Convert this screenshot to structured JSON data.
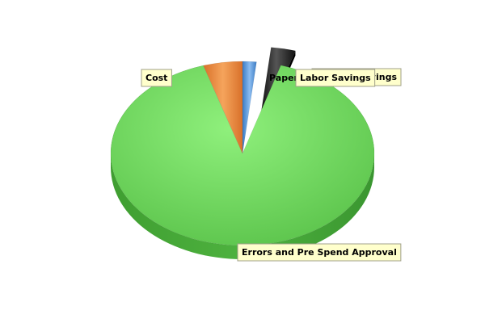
{
  "chart_data": {
    "type": "pie",
    "style": "3d-exploded",
    "legend": "none",
    "slices": [
      {
        "name": "Paper Cost Savings",
        "value": 1.7,
        "color": "#4f8fd6"
      },
      {
        "name": "Labor Savings",
        "value": 3.0,
        "color": "#1a1a1a"
      },
      {
        "name": "Errors and Pre Spend Approval",
        "value": 90.5,
        "color": "#6fd85f"
      },
      {
        "name": "Cost",
        "value": 4.8,
        "color": "#ee8a3a"
      }
    ],
    "labels": {
      "cost": "Cost",
      "paper_visible": "Paper",
      "paper_tail": "vings",
      "labor": "Labor Savings",
      "errors": "Errors and Pre Spend Approval"
    }
  }
}
